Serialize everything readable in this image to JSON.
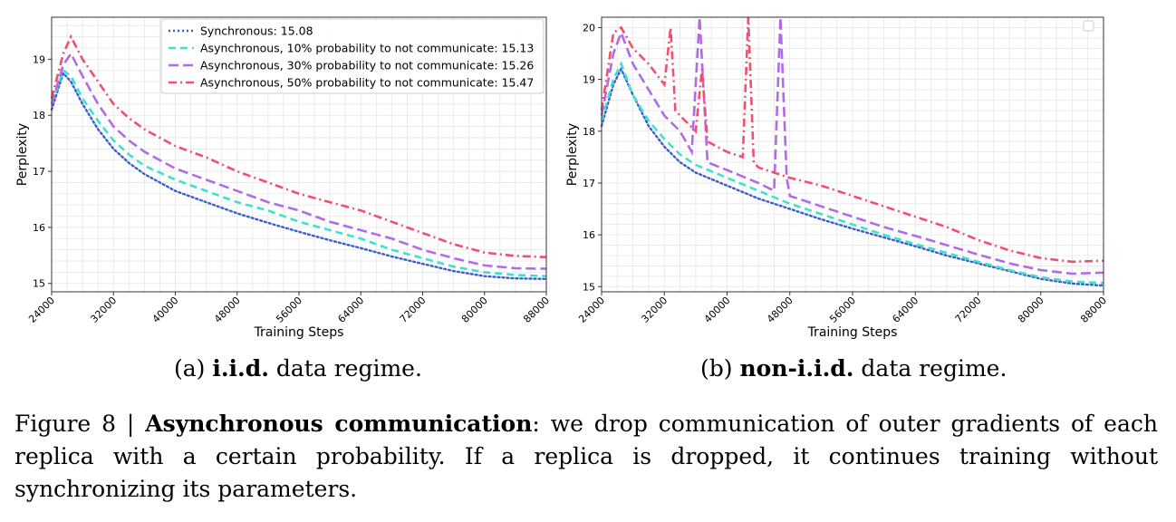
{
  "charts": [
    {
      "type": "line",
      "xlabel": "Training Steps",
      "ylabel": "Perplexity",
      "xlim": [
        24000,
        88000
      ],
      "ylim": [
        14.85,
        19.75
      ],
      "xticks": [
        24000,
        32000,
        40000,
        48000,
        56000,
        64000,
        72000,
        80000,
        88000
      ],
      "yticks": [
        15,
        16,
        17,
        18,
        19
      ],
      "grid": true,
      "legend": "upper right",
      "series": [
        {
          "name": "Synchronous: 15.08",
          "color": "#3a5fcd",
          "dash": "dotted",
          "x": [
            24000,
            25500,
            26500,
            28000,
            30000,
            32000,
            34000,
            36000,
            40000,
            44000,
            48000,
            52000,
            56000,
            60000,
            64000,
            68000,
            72000,
            76000,
            80000,
            84000,
            88000
          ],
          "y": [
            18.1,
            18.75,
            18.6,
            18.2,
            17.75,
            17.4,
            17.15,
            16.95,
            16.65,
            16.45,
            16.25,
            16.08,
            15.92,
            15.77,
            15.63,
            15.48,
            15.35,
            15.22,
            15.13,
            15.09,
            15.08
          ]
        },
        {
          "name": "Asynchronous, 10% probability to not communicate: 15.13",
          "color": "#40e0d0",
          "dash": "dashed",
          "x": [
            24000,
            25500,
            26500,
            28000,
            30000,
            32000,
            34000,
            36000,
            40000,
            44000,
            48000,
            52000,
            56000,
            60000,
            64000,
            68000,
            72000,
            76000,
            80000,
            84000,
            88000
          ],
          "y": [
            18.2,
            18.8,
            18.7,
            18.3,
            17.9,
            17.55,
            17.3,
            17.1,
            16.85,
            16.65,
            16.45,
            16.3,
            16.1,
            15.95,
            15.8,
            15.6,
            15.45,
            15.3,
            15.2,
            15.15,
            15.13
          ]
        },
        {
          "name": "Asynchronous, 30% probability to not communicate: 15.26",
          "color": "#b26be8",
          "dash": "longdash",
          "x": [
            24000,
            25500,
            26500,
            28000,
            30000,
            32000,
            34000,
            36000,
            40000,
            44000,
            48000,
            52000,
            56000,
            60000,
            64000,
            68000,
            72000,
            76000,
            80000,
            84000,
            88000
          ],
          "y": [
            18.2,
            18.9,
            19.1,
            18.7,
            18.2,
            17.8,
            17.55,
            17.35,
            17.05,
            16.85,
            16.65,
            16.45,
            16.3,
            16.1,
            15.95,
            15.8,
            15.6,
            15.45,
            15.32,
            15.27,
            15.26
          ]
        },
        {
          "name": "Asynchronous, 50% probability to not communicate: 15.47",
          "color": "#f0506e",
          "dash": "dashdot",
          "x": [
            24000,
            25500,
            26500,
            28000,
            30000,
            32000,
            34000,
            36000,
            40000,
            44000,
            48000,
            52000,
            56000,
            60000,
            64000,
            68000,
            72000,
            76000,
            80000,
            84000,
            88000
          ],
          "y": [
            18.3,
            19.1,
            19.4,
            19.0,
            18.6,
            18.2,
            17.95,
            17.75,
            17.45,
            17.25,
            17.0,
            16.8,
            16.6,
            16.45,
            16.3,
            16.1,
            15.9,
            15.7,
            15.55,
            15.49,
            15.47
          ]
        }
      ]
    },
    {
      "type": "line",
      "xlabel": "Training Steps",
      "ylabel": "Perplexity",
      "xlim": [
        24000,
        88000
      ],
      "ylim": [
        14.9,
        20.2
      ],
      "xticks": [
        24000,
        32000,
        40000,
        48000,
        56000,
        64000,
        72000,
        80000,
        88000
      ],
      "yticks": [
        15,
        16,
        17,
        18,
        19,
        20
      ],
      "grid": true,
      "legend": "upper right (empty)",
      "series": [
        {
          "name": "",
          "color": "#3a5fcd",
          "dash": "dotted",
          "x": [
            24000,
            25500,
            26500,
            28000,
            30000,
            32000,
            34000,
            36000,
            40000,
            44000,
            48000,
            52000,
            56000,
            60000,
            64000,
            68000,
            72000,
            76000,
            80000,
            84000,
            88000
          ],
          "y": [
            18.1,
            18.9,
            19.2,
            18.7,
            18.1,
            17.7,
            17.4,
            17.2,
            16.95,
            16.7,
            16.5,
            16.3,
            16.12,
            15.95,
            15.78,
            15.6,
            15.45,
            15.3,
            15.15,
            15.06,
            15.02
          ]
        },
        {
          "name": "",
          "color": "#40e0d0",
          "dash": "dashed",
          "x": [
            24000,
            25500,
            26500,
            28000,
            30000,
            32000,
            34000,
            36000,
            40000,
            44000,
            48000,
            52000,
            56000,
            60000,
            64000,
            68000,
            72000,
            76000,
            80000,
            84000,
            88000
          ],
          "y": [
            18.2,
            19.0,
            19.3,
            18.7,
            18.2,
            17.85,
            17.55,
            17.35,
            17.1,
            16.85,
            16.6,
            16.4,
            16.2,
            16.0,
            15.82,
            15.65,
            15.48,
            15.32,
            15.18,
            15.1,
            15.07
          ]
        },
        {
          "name": "",
          "color": "#b26be8",
          "dash": "longdash",
          "x": [
            24000,
            25500,
            26500,
            28000,
            30000,
            32000,
            34000,
            35500,
            36500,
            37500,
            40000,
            44000,
            46000,
            46800,
            47600,
            48000,
            52000,
            56000,
            60000,
            64000,
            68000,
            72000,
            76000,
            80000,
            84000,
            88000
          ],
          "y": [
            18.3,
            19.5,
            19.9,
            19.3,
            18.8,
            18.3,
            18.0,
            17.6,
            20.2,
            17.4,
            17.25,
            17.0,
            16.85,
            20.2,
            17.1,
            16.75,
            16.55,
            16.35,
            16.15,
            15.98,
            15.8,
            15.62,
            15.45,
            15.32,
            15.25,
            15.27
          ]
        },
        {
          "name": "",
          "color": "#f0506e",
          "dash": "dashdot",
          "x": [
            24000,
            25500,
            26500,
            28000,
            30000,
            32000,
            32800,
            33400,
            34000,
            36000,
            36800,
            37500,
            40000,
            42000,
            42700,
            43400,
            44000,
            48000,
            52000,
            56000,
            60000,
            64000,
            68000,
            72000,
            76000,
            80000,
            84000,
            88000
          ],
          "y": [
            18.4,
            19.9,
            20.0,
            19.6,
            19.3,
            18.9,
            20.0,
            18.4,
            18.3,
            18.0,
            19.2,
            17.8,
            17.6,
            17.5,
            20.2,
            17.4,
            17.3,
            17.1,
            16.95,
            16.75,
            16.55,
            16.35,
            16.15,
            15.9,
            15.7,
            15.55,
            15.48,
            15.5
          ]
        }
      ]
    }
  ],
  "subcaptions": [
    {
      "prefix": "(a) ",
      "bold": "i.i.d.",
      "suffix": " data regime."
    },
    {
      "prefix": "(b) ",
      "bold": "non-i.i.d.",
      "suffix": " data regime."
    }
  ],
  "caption": {
    "prefix": "Figure 8 | ",
    "bold": "Asynchronous communication",
    "text": ": we drop communication of outer gradients of each replica with a certain probability. If a replica is dropped, it continues training without synchronizing its parameters."
  }
}
